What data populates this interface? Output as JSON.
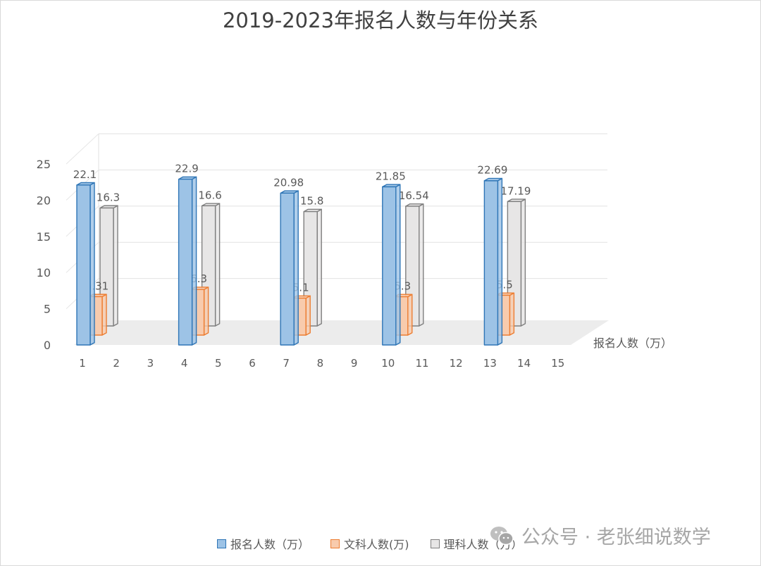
{
  "chart_data": {
    "type": "bar",
    "title": "2019-2023年报名人数与年份关系",
    "x": [
      1,
      2,
      3,
      4,
      5,
      6,
      7,
      8,
      9,
      10,
      11,
      12,
      13,
      14,
      15
    ],
    "ylim": [
      0,
      25
    ],
    "yticks": [
      0,
      5,
      10,
      15,
      20,
      25
    ],
    "depth_axis_label": "报名人数（万）",
    "grid": true,
    "legend_position": "bottom",
    "series": [
      {
        "name": "报名人数（万）",
        "x": [
          1,
          4,
          7,
          10,
          13
        ],
        "values": [
          22.1,
          22.9,
          20.98,
          21.85,
          22.69
        ],
        "labels": [
          "22.1",
          "22.9",
          "20.98",
          "21.85",
          "22.69"
        ],
        "color": "#9DC3E6",
        "stroke": "#2E75B6"
      },
      {
        "name": "文科人数(万)",
        "x": [
          1,
          4,
          7,
          10,
          13
        ],
        "values": [
          5.31,
          6.3,
          5.1,
          5.3,
          5.5
        ],
        "labels": [
          "5.31",
          "6.3",
          "5.1",
          "5.3",
          "5.5"
        ],
        "color": "#F8CBAD",
        "stroke": "#ED7D31"
      },
      {
        "name": "理科人数（万）",
        "x": [
          1,
          4,
          7,
          10,
          13
        ],
        "values": [
          16.3,
          16.6,
          15.8,
          16.54,
          17.19
        ],
        "labels": [
          "16.3",
          "16.6",
          "15.8",
          "16.54",
          "17.19"
        ],
        "color": "#E7E6E6",
        "stroke": "#7F7F7F"
      }
    ]
  },
  "watermark": {
    "text": "公众号 · 老张细说数学",
    "icon": "wechat-icon"
  }
}
